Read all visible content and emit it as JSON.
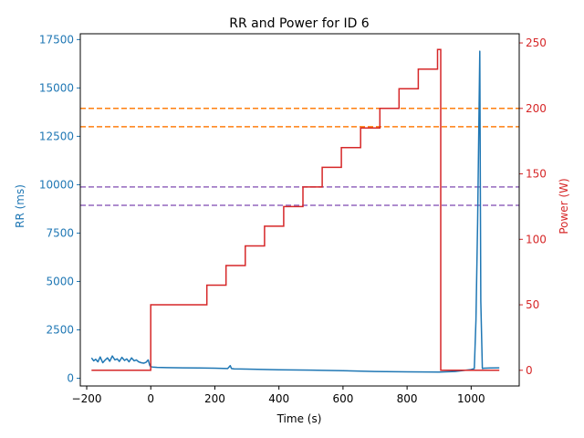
{
  "chart_data": {
    "type": "line",
    "title": "RR and Power for ID 6",
    "xlabel": "Time (s)",
    "ylabel_left": "RR (ms)",
    "ylabel_right": "Power (W)",
    "xlim": [
      -220,
      1150
    ],
    "ylim_left": [
      -400,
      17800
    ],
    "ylim_right": [
      -12,
      257
    ],
    "x_ticks": [
      -200,
      0,
      200,
      400,
      600,
      800,
      1000
    ],
    "x_tick_labels": [
      "−200",
      "0",
      "200",
      "400",
      "600",
      "800",
      "1000"
    ],
    "y_left_ticks": [
      0,
      2500,
      5000,
      7500,
      10000,
      12500,
      15000,
      17500
    ],
    "y_left_tick_labels": [
      "0",
      "2500",
      "5000",
      "7500",
      "10000",
      "12500",
      "15000",
      "17500"
    ],
    "y_right_ticks": [
      0,
      50,
      100,
      150,
      200,
      250
    ],
    "y_right_tick_labels": [
      "0",
      "50",
      "100",
      "150",
      "200",
      "250"
    ],
    "colors": {
      "rr": "#1f77b4",
      "power": "#d62728",
      "threshold_high": "#ff7f0e",
      "threshold_low": "#9467bd"
    },
    "threshold_lines": [
      {
        "axis": "right",
        "value": 200,
        "color": "#ff7f0e"
      },
      {
        "axis": "right",
        "value": 186,
        "color": "#ff7f0e"
      },
      {
        "axis": "right",
        "value": 140,
        "color": "#9467bd"
      },
      {
        "axis": "right",
        "value": 126,
        "color": "#9467bd"
      }
    ],
    "rr_series": {
      "x": [
        -185,
        -178,
        -172,
        -165,
        -158,
        -150,
        -142,
        -135,
        -128,
        -120,
        -112,
        -105,
        -98,
        -90,
        -82,
        -75,
        -68,
        -60,
        -52,
        -45,
        -38,
        -30,
        -22,
        -15,
        -8,
        -3,
        0,
        5,
        20,
        50,
        100,
        150,
        200,
        240,
        248,
        252,
        260,
        300,
        400,
        500,
        600,
        700,
        800,
        900,
        950,
        1000,
        1010,
        1015,
        1020,
        1027,
        1030,
        1035,
        1040,
        1060,
        1088
      ],
      "y": [
        1050,
        900,
        980,
        850,
        1100,
        800,
        950,
        1050,
        880,
        1150,
        950,
        1000,
        870,
        1080,
        920,
        1000,
        850,
        1050,
        900,
        950,
        850,
        800,
        780,
        820,
        950,
        650,
        600,
        580,
        560,
        550,
        540,
        530,
        520,
        500,
        650,
        500,
        480,
        470,
        440,
        420,
        390,
        350,
        330,
        320,
        350,
        450,
        500,
        3000,
        8000,
        16900,
        4000,
        500,
        520,
        530,
        540
      ]
    },
    "power_series": {
      "x": [
        -185,
        0,
        0,
        175,
        175,
        235,
        235,
        295,
        295,
        355,
        355,
        415,
        415,
        475,
        475,
        535,
        535,
        595,
        595,
        655,
        655,
        715,
        715,
        775,
        775,
        835,
        835,
        895,
        895,
        905,
        905,
        1088
      ],
      "y": [
        0,
        0,
        50,
        50,
        65,
        65,
        80,
        80,
        95,
        95,
        110,
        110,
        125,
        125,
        140,
        140,
        155,
        155,
        170,
        170,
        185,
        185,
        200,
        200,
        215,
        215,
        230,
        230,
        245,
        245,
        0,
        0
      ]
    }
  }
}
